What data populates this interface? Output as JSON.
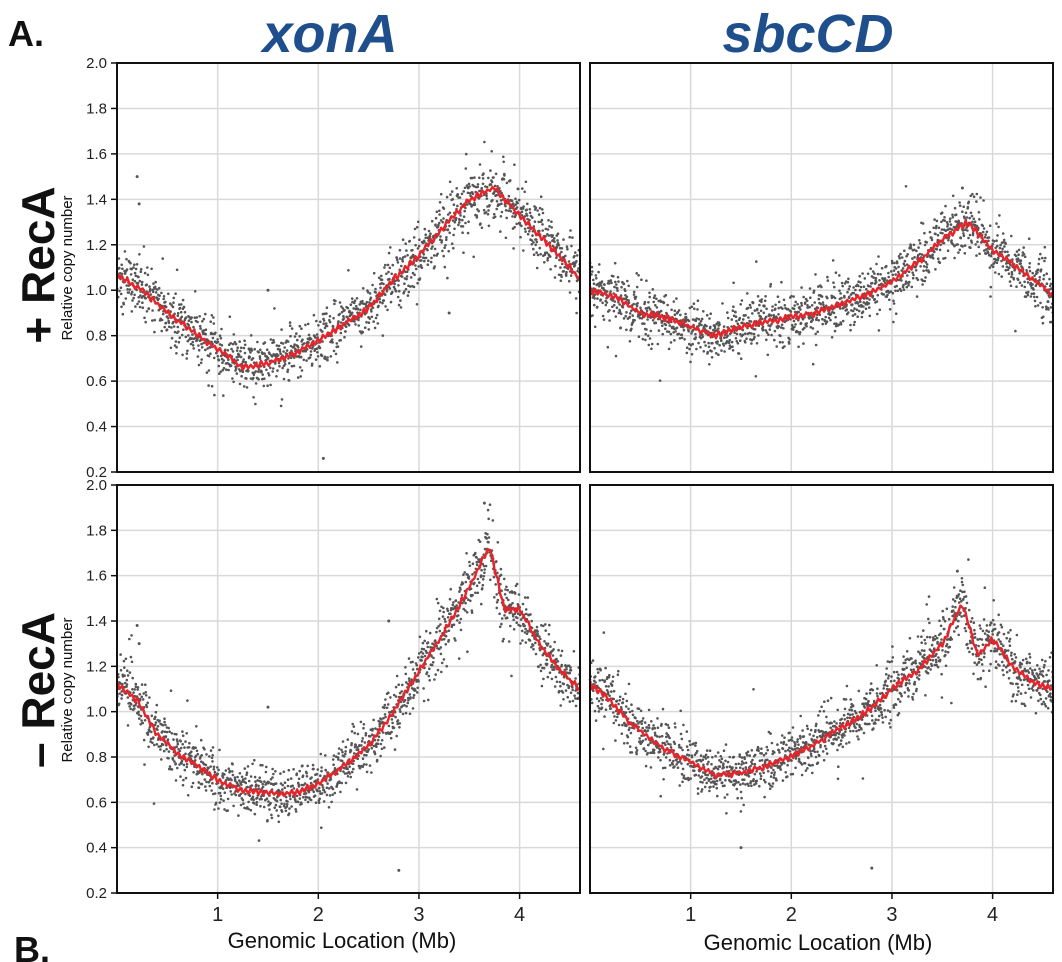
{
  "labels": {
    "panel_a": "A.",
    "panel_b": "B.",
    "col_titles": [
      "xonA",
      "sbcCD"
    ],
    "row_titles": [
      "+ RecA",
      "– RecA"
    ],
    "ylabel": "Relative copy number",
    "xlabel": "Genomic Location (Mb)"
  },
  "colors": {
    "title_blue": "#1f4e8c",
    "points": "#555555",
    "smooth_line": "#e8232a",
    "grid": "#d9d9d9",
    "axis": "#111111"
  },
  "chart_data": [
    {
      "type": "scatter",
      "title": "xonA",
      "row": "+ RecA",
      "xlabel": "",
      "ylabel": "Relative copy number",
      "xlim": [
        0,
        4.6
      ],
      "ylim": [
        0.2,
        2.0
      ],
      "xticks": [
        "1",
        "2",
        "3",
        "4"
      ],
      "yticks": [
        "0.2",
        "0.4",
        "0.6",
        "0.8",
        "1.0",
        "1.2",
        "1.4",
        "1.6",
        "1.8",
        "2.0"
      ],
      "grid": true,
      "series": [
        {
          "kind": "smoothed line",
          "x": [
            0,
            0.25,
            0.5,
            0.75,
            1.0,
            1.25,
            1.5,
            1.75,
            2.0,
            2.25,
            2.5,
            2.75,
            3.0,
            3.25,
            3.5,
            3.75,
            4.0,
            4.25,
            4.6
          ],
          "y": [
            1.07,
            1.0,
            0.9,
            0.82,
            0.74,
            0.66,
            0.68,
            0.72,
            0.78,
            0.85,
            0.92,
            1.05,
            1.15,
            1.28,
            1.4,
            1.45,
            1.33,
            1.22,
            1.05
          ]
        }
      ],
      "outliers": [
        [
          0.2,
          1.5
        ],
        [
          0.22,
          1.38
        ],
        [
          1.5,
          1.0
        ],
        [
          2.05,
          0.26
        ],
        [
          3.3,
          0.9
        ]
      ]
    },
    {
      "type": "scatter",
      "title": "sbcCD",
      "row": "+ RecA",
      "xlabel": "",
      "ylabel": "",
      "xlim": [
        0,
        4.6
      ],
      "ylim": [
        0.2,
        2.0
      ],
      "xticks": [
        "1",
        "2",
        "3",
        "4"
      ],
      "grid": true,
      "series": [
        {
          "kind": "smoothed line",
          "x": [
            0,
            0.25,
            0.5,
            0.75,
            1.0,
            1.25,
            1.5,
            1.75,
            2.0,
            2.25,
            2.5,
            2.75,
            3.0,
            3.25,
            3.5,
            3.75,
            4.0,
            4.25,
            4.6
          ],
          "y": [
            1.0,
            0.97,
            0.9,
            0.88,
            0.84,
            0.8,
            0.84,
            0.86,
            0.88,
            0.9,
            0.94,
            0.98,
            1.04,
            1.12,
            1.22,
            1.3,
            1.18,
            1.1,
            0.98
          ]
        }
      ],
      "outliers": [
        [
          3.7,
          1.45
        ],
        [
          4.55,
          0.95
        ]
      ]
    },
    {
      "type": "scatter",
      "title": "xonA",
      "row": "– RecA",
      "xlabel": "Genomic Location (Mb)",
      "ylabel": "Relative copy number",
      "xlim": [
        0,
        4.6
      ],
      "ylim": [
        0.2,
        2.0
      ],
      "xticks": [
        "1",
        "2",
        "3",
        "4"
      ],
      "yticks": [
        "0.2",
        "0.4",
        "0.6",
        "0.8",
        "1.0",
        "1.2",
        "1.4",
        "1.6",
        "1.8",
        "2.0"
      ],
      "grid": true,
      "series": [
        {
          "kind": "smoothed line",
          "x": [
            0,
            0.2,
            0.4,
            0.6,
            0.8,
            1.0,
            1.25,
            1.5,
            1.75,
            2.0,
            2.25,
            2.5,
            2.75,
            3.0,
            3.25,
            3.5,
            3.7,
            3.85,
            4.0,
            4.2,
            4.4,
            4.6
          ],
          "y": [
            1.12,
            1.05,
            0.9,
            0.82,
            0.76,
            0.7,
            0.65,
            0.64,
            0.64,
            0.68,
            0.76,
            0.85,
            1.0,
            1.18,
            1.35,
            1.55,
            1.73,
            1.45,
            1.45,
            1.3,
            1.18,
            1.1
          ]
        }
      ],
      "outliers": [
        [
          0.2,
          1.38
        ],
        [
          0.22,
          1.3
        ],
        [
          2.8,
          0.3
        ],
        [
          2.7,
          1.4
        ],
        [
          3.65,
          1.92
        ],
        [
          1.5,
          1.02
        ]
      ]
    },
    {
      "type": "scatter",
      "title": "sbcCD",
      "row": "– RecA",
      "xlabel": "Genomic Location (Mb)",
      "ylabel": "",
      "xlim": [
        0,
        4.6
      ],
      "ylim": [
        0.2,
        2.0
      ],
      "xticks": [
        "1",
        "2",
        "3",
        "4"
      ],
      "grid": true,
      "series": [
        {
          "kind": "smoothed line",
          "x": [
            0,
            0.2,
            0.4,
            0.6,
            0.8,
            1.0,
            1.25,
            1.5,
            1.75,
            2.0,
            2.25,
            2.5,
            2.75,
            3.0,
            3.25,
            3.5,
            3.7,
            3.85,
            4.0,
            4.2,
            4.4,
            4.6
          ],
          "y": [
            1.12,
            1.05,
            0.95,
            0.88,
            0.82,
            0.78,
            0.72,
            0.73,
            0.76,
            0.8,
            0.86,
            0.93,
            1.0,
            1.1,
            1.18,
            1.3,
            1.48,
            1.25,
            1.32,
            1.2,
            1.13,
            1.1
          ]
        }
      ],
      "outliers": [
        [
          2.8,
          0.31
        ],
        [
          3.65,
          1.62
        ],
        [
          1.5,
          0.4
        ]
      ]
    }
  ]
}
